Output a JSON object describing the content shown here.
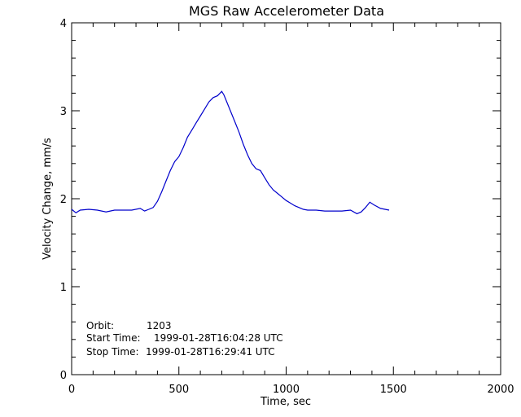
{
  "chart_data": {
    "type": "line",
    "title": "MGS Raw Accelerometer Data",
    "xlabel": "Time, sec",
    "ylabel": "Velocity Change, mm/s",
    "xlim": [
      0,
      2000
    ],
    "ylim": [
      0,
      4
    ],
    "x_ticks": [
      0,
      500,
      1000,
      1500,
      2000
    ],
    "y_ticks": [
      0,
      1,
      2,
      3,
      4
    ],
    "grid": false,
    "line_color": "#0000cc",
    "series": [
      {
        "x": [
          0,
          20,
          40,
          80,
          120,
          160,
          200,
          240,
          280,
          320,
          340,
          360,
          380,
          400,
          420,
          440,
          460,
          480,
          500,
          520,
          540,
          560,
          580,
          600,
          620,
          640,
          660,
          680,
          700,
          710,
          720,
          740,
          760,
          780,
          800,
          820,
          840,
          860,
          880,
          900,
          920,
          940,
          960,
          980,
          1000,
          1020,
          1040,
          1060,
          1080,
          1100,
          1140,
          1180,
          1220,
          1260,
          1300,
          1330,
          1350,
          1370,
          1390,
          1410,
          1440,
          1480
        ],
        "y": [
          1.88,
          1.84,
          1.87,
          1.88,
          1.87,
          1.85,
          1.87,
          1.87,
          1.87,
          1.89,
          1.86,
          1.88,
          1.9,
          1.97,
          2.08,
          2.2,
          2.32,
          2.42,
          2.48,
          2.58,
          2.7,
          2.78,
          2.86,
          2.94,
          3.02,
          3.1,
          3.15,
          3.17,
          3.22,
          3.18,
          3.12,
          3.0,
          2.88,
          2.76,
          2.62,
          2.5,
          2.4,
          2.34,
          2.32,
          2.24,
          2.16,
          2.1,
          2.06,
          2.02,
          1.98,
          1.95,
          1.92,
          1.9,
          1.88,
          1.87,
          1.87,
          1.86,
          1.86,
          1.86,
          1.87,
          1.83,
          1.85,
          1.9,
          1.96,
          1.93,
          1.89,
          1.87
        ]
      }
    ]
  },
  "annotations": {
    "orbit_label": "Orbit:",
    "orbit_value": "1203",
    "start_label": "Start Time:",
    "start_value": "1999-01-28T16:04:28 UTC",
    "stop_label": "Stop Time:",
    "stop_value": "1999-01-28T16:29:41 UTC"
  }
}
